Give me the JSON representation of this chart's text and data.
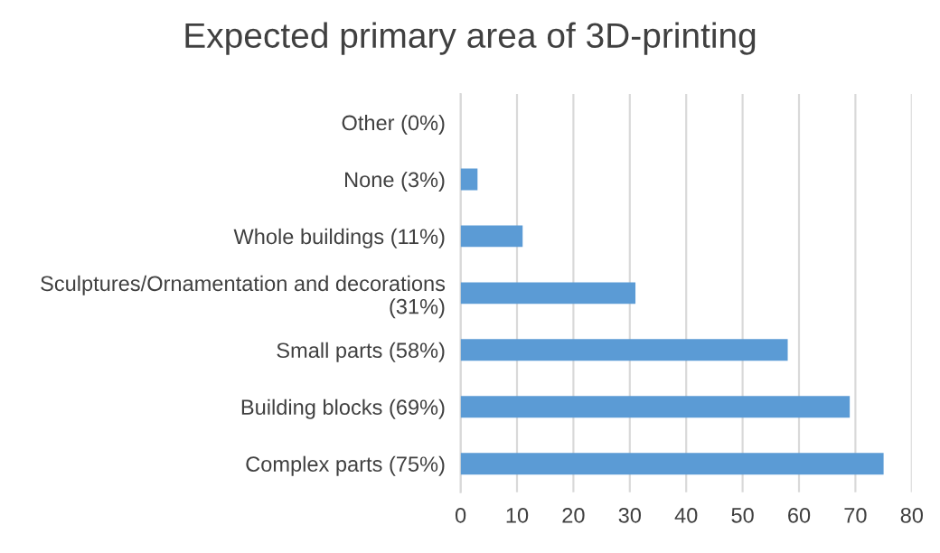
{
  "chart_data": {
    "type": "bar",
    "orientation": "horizontal",
    "title": "Expected primary area of 3D-printing",
    "categories": [
      "Other (0%)",
      "None (3%)",
      "Whole buildings (11%)",
      "Sculptures/Ornamentation and decorations (31%)",
      "Small parts (58%)",
      "Building blocks (69%)",
      "Complex parts (75%)"
    ],
    "values": [
      0,
      3,
      11,
      31,
      58,
      69,
      75
    ],
    "color": "#5b9bd5",
    "xlim": [
      0,
      80
    ],
    "xticks": [
      0,
      10,
      20,
      30,
      40,
      50,
      60,
      70,
      80
    ],
    "grid": "x",
    "legend": false
  }
}
